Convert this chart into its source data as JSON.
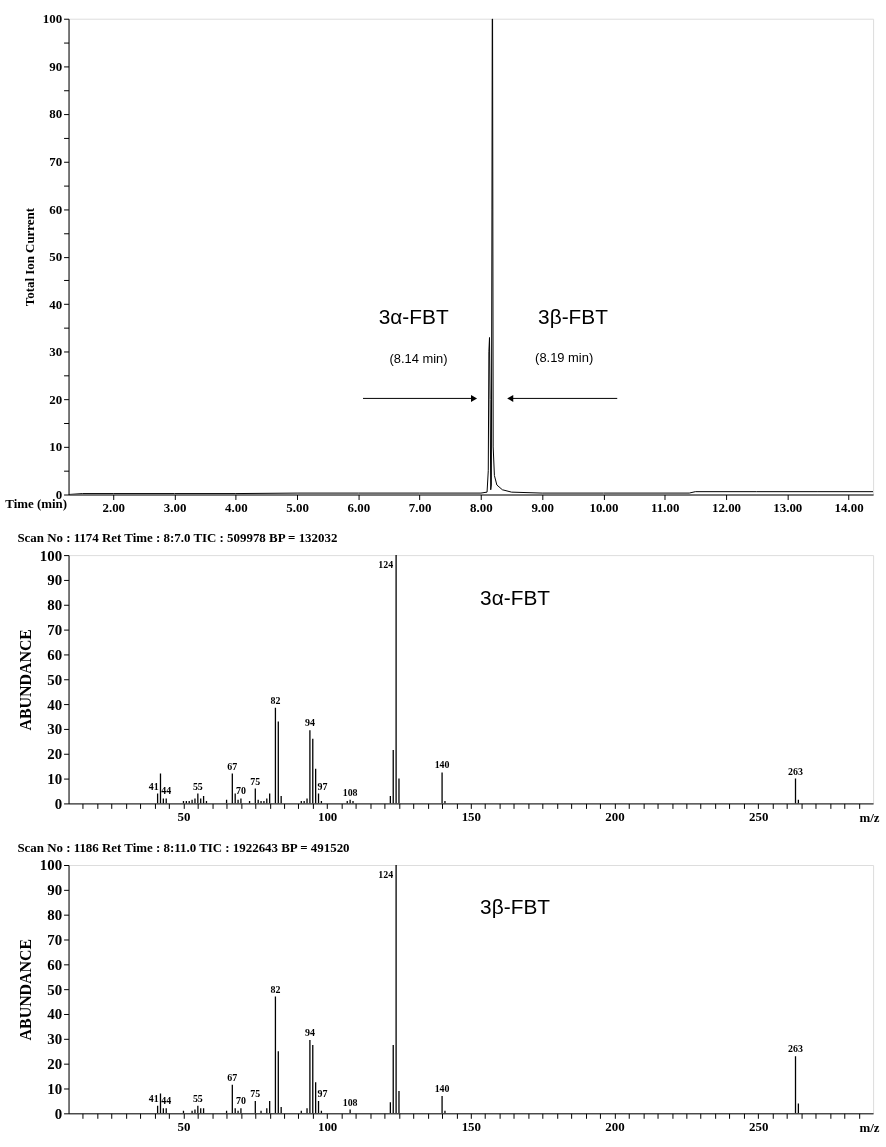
{
  "chart_data": [
    {
      "type": "line",
      "xlabel": "Time (min)",
      "ylabel": "Total Ion Current",
      "x": [
        1.27,
        1.5,
        2.0,
        3.0,
        4.0,
        5.0,
        6.0,
        7.0,
        8.0,
        8.1,
        8.12,
        8.13,
        8.14,
        8.15,
        8.16,
        8.17,
        8.18,
        8.185,
        8.19,
        8.2,
        8.22,
        8.26,
        8.35,
        8.5,
        9.0,
        10.0,
        11.4,
        11.5,
        12.5,
        13.5,
        14.4
      ],
      "series": [
        {
          "color": "#000000",
          "values": [
            0,
            0.2,
            0.2,
            0.2,
            0.2,
            0.3,
            0.3,
            0.3,
            0.3,
            0.5,
            5,
            30,
            33,
            20,
            1,
            2,
            60,
            100,
            100,
            10,
            4,
            2,
            1,
            0.5,
            0.3,
            0.3,
            0.3,
            0.6,
            0.6,
            0.6,
            0.6
          ]
        }
      ],
      "xlim": [
        1.27,
        14.4
      ],
      "xticks": [
        {
          "value": 2,
          "label": "2.00"
        },
        {
          "value": 3,
          "label": "3.00"
        },
        {
          "value": 4,
          "label": "4.00"
        },
        {
          "value": 5,
          "label": "5.00"
        },
        {
          "value": 6,
          "label": "6.00"
        },
        {
          "value": 7,
          "label": "7.00"
        },
        {
          "value": 8,
          "label": "8.00"
        },
        {
          "value": 9,
          "label": "9.00"
        },
        {
          "value": 10,
          "label": "10.00"
        },
        {
          "value": 11,
          "label": "11.00"
        },
        {
          "value": 12,
          "label": "12.00"
        },
        {
          "value": 13,
          "label": "13.00"
        },
        {
          "value": 14,
          "label": "14.00"
        }
      ],
      "ylim": [
        0,
        100
      ],
      "yticks": [
        0,
        {
          "value": 5,
          "label": null
        },
        10,
        {
          "value": 15,
          "label": null
        },
        20,
        {
          "value": 25,
          "label": null
        },
        30,
        {
          "value": 35,
          "label": null
        },
        40,
        {
          "value": 45,
          "label": null
        },
        50,
        {
          "value": 55,
          "label": null
        },
        60,
        {
          "value": 65,
          "label": null
        },
        70,
        {
          "value": 75,
          "label": null
        },
        80,
        {
          "value": 85,
          "label": null
        },
        90,
        {
          "value": 95,
          "label": null
        },
        100
      ],
      "annotations": [
        "3α-FBT",
        "(8.14 min)",
        "3β-FBT",
        "(8.19 min)"
      ]
    },
    {
      "type": "bar",
      "title": "Scan No : 1174   Ret Time : 8:7.0  TIC : 509978  BP = 132032",
      "xlabel": "m/z",
      "ylabel": "ABUNDANCE",
      "x": [
        41,
        42,
        43,
        44,
        50,
        51,
        52,
        53,
        54,
        55,
        56,
        57,
        58,
        65,
        67,
        68,
        69,
        70,
        73,
        75,
        76,
        77,
        78,
        79,
        80,
        82,
        83,
        84,
        91,
        92,
        93,
        94,
        95,
        96,
        97,
        98,
        107,
        108,
        109,
        122,
        123,
        124,
        125,
        140,
        141,
        263,
        264
      ],
      "series": [
        {
          "color": "#000000",
          "values": [
            4,
            12,
            2,
            2,
            1,
            1,
            1,
            1.5,
            2,
            4,
            2,
            3,
            1,
            1.5,
            12,
            4,
            1.5,
            2,
            1,
            6,
            1.5,
            1,
            1,
            2,
            4,
            38.5,
            33,
            3,
            1,
            1,
            2,
            29.5,
            26,
            14,
            4,
            1,
            1,
            1.5,
            1,
            3,
            21.5,
            100,
            10,
            12.5,
            1,
            10,
            1.5
          ]
        }
      ],
      "xlim": [
        10,
        290
      ],
      "xticks": [
        {
          "value": 15,
          "label": null
        },
        {
          "value": 20,
          "label": null
        },
        {
          "value": 25,
          "label": null
        },
        {
          "value": 30,
          "label": null
        },
        {
          "value": 35,
          "label": null
        },
        {
          "value": 40,
          "label": null
        },
        {
          "value": 45,
          "label": null
        },
        50,
        {
          "value": 55,
          "label": null
        },
        {
          "value": 60,
          "label": null
        },
        {
          "value": 65,
          "label": null
        },
        {
          "value": 70,
          "label": null
        },
        {
          "value": 75,
          "label": null
        },
        {
          "value": 80,
          "label": null
        },
        {
          "value": 85,
          "label": null
        },
        {
          "value": 90,
          "label": null
        },
        {
          "value": 95,
          "label": null
        },
        100,
        {
          "value": 105,
          "label": null
        },
        {
          "value": 110,
          "label": null
        },
        {
          "value": 115,
          "label": null
        },
        {
          "value": 120,
          "label": null
        },
        {
          "value": 125,
          "label": null
        },
        {
          "value": 130,
          "label": null
        },
        {
          "value": 135,
          "label": null
        },
        {
          "value": 140,
          "label": null
        },
        {
          "value": 145,
          "label": null
        },
        150,
        {
          "value": 155,
          "label": null
        },
        {
          "value": 160,
          "label": null
        },
        {
          "value": 165,
          "label": null
        },
        {
          "value": 170,
          "label": null
        },
        {
          "value": 175,
          "label": null
        },
        {
          "value": 180,
          "label": null
        },
        {
          "value": 185,
          "label": null
        },
        {
          "value": 190,
          "label": null
        },
        {
          "value": 195,
          "label": null
        },
        200,
        {
          "value": 205,
          "label": null
        },
        {
          "value": 210,
          "label": null
        },
        {
          "value": 215,
          "label": null
        },
        {
          "value": 220,
          "label": null
        },
        {
          "value": 225,
          "label": null
        },
        {
          "value": 230,
          "label": null
        },
        {
          "value": 235,
          "label": null
        },
        {
          "value": 240,
          "label": null
        },
        {
          "value": 245,
          "label": null
        },
        250,
        {
          "value": 255,
          "label": null
        },
        {
          "value": 260,
          "label": null
        },
        {
          "value": 265,
          "label": null
        },
        {
          "value": 270,
          "label": null
        },
        {
          "value": 275,
          "label": null
        },
        {
          "value": 280,
          "label": null
        },
        {
          "value": 285,
          "label": null
        }
      ],
      "ylim": [
        0,
        100
      ],
      "yticks": [
        0,
        10,
        20,
        30,
        40,
        50,
        60,
        70,
        80,
        90,
        100
      ],
      "annotations": [
        "3α-FBT",
        {
          "text": "41",
          "x": 41,
          "y": 4
        },
        {
          "text": "44",
          "x": 44,
          "y": 2
        },
        {
          "text": "55",
          "x": 55,
          "y": 4
        },
        {
          "text": "67",
          "x": 67,
          "y": 12
        },
        {
          "text": "70",
          "x": 70,
          "y": 2
        },
        {
          "text": "75",
          "x": 75,
          "y": 6
        },
        {
          "text": "82",
          "x": 82,
          "y": 38.5
        },
        {
          "text": "94",
          "x": 94,
          "y": 29.5
        },
        {
          "text": "97",
          "x": 97,
          "y": 4
        },
        {
          "text": "108",
          "x": 108,
          "y": 1.5
        },
        {
          "text": "124",
          "x": 124,
          "y": 100
        },
        {
          "text": "140",
          "x": 140,
          "y": 12.5
        },
        {
          "text": "263",
          "x": 263,
          "y": 10
        }
      ]
    },
    {
      "type": "bar",
      "title": "Scan No : 1186   Ret Time : 8:11.0  TIC : 1922643  BP = 491520",
      "xlabel": "m/z",
      "ylabel": "ABUNDANCE",
      "x": [
        41,
        42,
        43,
        44,
        50,
        53,
        54,
        55,
        56,
        57,
        65,
        67,
        68,
        69,
        70,
        75,
        77,
        79,
        80,
        82,
        83,
        84,
        91,
        93,
        94,
        95,
        96,
        97,
        98,
        108,
        122,
        123,
        124,
        125,
        140,
        141,
        263,
        264
      ],
      "series": [
        {
          "color": "#000000",
          "values": [
            3,
            8,
            2,
            2,
            1,
            1,
            1.5,
            3,
            2,
            2,
            1,
            11.5,
            2,
            1,
            2,
            5,
            1,
            2,
            5,
            47,
            25,
            2.5,
            1,
            2,
            29.5,
            27.5,
            12.5,
            5,
            1,
            1.5,
            4.5,
            27.5,
            100,
            9,
            7,
            1,
            23,
            4
          ]
        }
      ],
      "xlim": [
        10,
        290
      ],
      "xticks": [
        {
          "value": 15,
          "label": null
        },
        {
          "value": 20,
          "label": null
        },
        {
          "value": 25,
          "label": null
        },
        {
          "value": 30,
          "label": null
        },
        {
          "value": 35,
          "label": null
        },
        {
          "value": 40,
          "label": null
        },
        {
          "value": 45,
          "label": null
        },
        50,
        {
          "value": 55,
          "label": null
        },
        {
          "value": 60,
          "label": null
        },
        {
          "value": 65,
          "label": null
        },
        {
          "value": 70,
          "label": null
        },
        {
          "value": 75,
          "label": null
        },
        {
          "value": 80,
          "label": null
        },
        {
          "value": 85,
          "label": null
        },
        {
          "value": 90,
          "label": null
        },
        {
          "value": 95,
          "label": null
        },
        100,
        {
          "value": 105,
          "label": null
        },
        {
          "value": 110,
          "label": null
        },
        {
          "value": 115,
          "label": null
        },
        {
          "value": 120,
          "label": null
        },
        {
          "value": 125,
          "label": null
        },
        {
          "value": 130,
          "label": null
        },
        {
          "value": 135,
          "label": null
        },
        {
          "value": 140,
          "label": null
        },
        {
          "value": 145,
          "label": null
        },
        150,
        {
          "value": 155,
          "label": null
        },
        {
          "value": 160,
          "label": null
        },
        {
          "value": 165,
          "label": null
        },
        {
          "value": 170,
          "label": null
        },
        {
          "value": 175,
          "label": null
        },
        {
          "value": 180,
          "label": null
        },
        {
          "value": 185,
          "label": null
        },
        {
          "value": 190,
          "label": null
        },
        {
          "value": 195,
          "label": null
        },
        200,
        {
          "value": 205,
          "label": null
        },
        {
          "value": 210,
          "label": null
        },
        {
          "value": 215,
          "label": null
        },
        {
          "value": 220,
          "label": null
        },
        {
          "value": 225,
          "label": null
        },
        {
          "value": 230,
          "label": null
        },
        {
          "value": 235,
          "label": null
        },
        {
          "value": 240,
          "label": null
        },
        {
          "value": 245,
          "label": null
        },
        250,
        {
          "value": 255,
          "label": null
        },
        {
          "value": 260,
          "label": null
        },
        {
          "value": 265,
          "label": null
        },
        {
          "value": 270,
          "label": null
        },
        {
          "value": 275,
          "label": null
        },
        {
          "value": 280,
          "label": null
        },
        {
          "value": 285,
          "label": null
        }
      ],
      "ylim": [
        0,
        100
      ],
      "yticks": [
        0,
        10,
        20,
        30,
        40,
        50,
        60,
        70,
        80,
        90,
        100
      ],
      "annotations": [
        "3β-FBT",
        {
          "text": "41",
          "x": 41,
          "y": 3
        },
        {
          "text": "44",
          "x": 44,
          "y": 2
        },
        {
          "text": "55",
          "x": 55,
          "y": 3
        },
        {
          "text": "67",
          "x": 67,
          "y": 11.5
        },
        {
          "text": "70",
          "x": 70,
          "y": 2
        },
        {
          "text": "75",
          "x": 75,
          "y": 5
        },
        {
          "text": "82",
          "x": 82,
          "y": 47
        },
        {
          "text": "94",
          "x": 94,
          "y": 29.5
        },
        {
          "text": "97",
          "x": 97,
          "y": 5
        },
        {
          "text": "108",
          "x": 108,
          "y": 1.5
        },
        {
          "text": "124",
          "x": 124,
          "y": 100
        },
        {
          "text": "140",
          "x": 140,
          "y": 7
        },
        {
          "text": "263",
          "x": 263,
          "y": 23
        }
      ]
    }
  ]
}
